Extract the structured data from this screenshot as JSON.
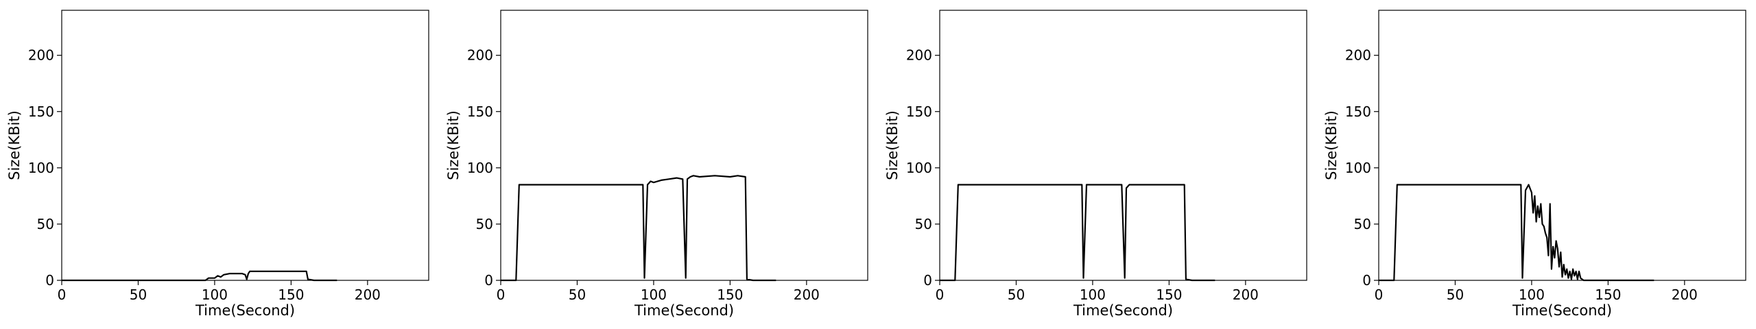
{
  "figure": {
    "background": "#ffffff",
    "line_color": "#000000"
  },
  "chart_data": [
    {
      "type": "line",
      "xlabel": "Time(Second)",
      "ylabel": "Size(KBit)",
      "xlim": [
        0,
        240
      ],
      "ylim": [
        0,
        240
      ],
      "xticks": [
        0,
        50,
        100,
        150,
        200
      ],
      "yticks": [
        0,
        50,
        100,
        150,
        200
      ],
      "grid": false,
      "series": [
        {
          "x": [
            0,
            10,
            20,
            30,
            40,
            50,
            60,
            70,
            80,
            90,
            94,
            96,
            100,
            102,
            104,
            106,
            110,
            112,
            118,
            120,
            121,
            122,
            123,
            126,
            130,
            135,
            140,
            145,
            150,
            155,
            160,
            161,
            165,
            170,
            175,
            180
          ],
          "values": [
            0,
            0,
            0,
            0,
            0,
            0,
            0,
            0,
            0,
            0,
            0,
            2,
            2,
            4,
            3,
            5,
            6,
            6,
            6,
            5,
            1,
            6,
            8,
            8,
            8,
            8,
            8,
            8,
            8,
            8,
            8,
            1,
            0,
            0,
            0,
            0
          ]
        }
      ]
    },
    {
      "type": "line",
      "xlabel": "Time(Second)",
      "ylabel": "Size(KBit)",
      "xlim": [
        0,
        240
      ],
      "ylim": [
        0,
        240
      ],
      "xticks": [
        0,
        50,
        100,
        150,
        200
      ],
      "yticks": [
        0,
        50,
        100,
        150,
        200
      ],
      "grid": false,
      "series": [
        {
          "x": [
            0,
            10,
            12,
            15,
            30,
            50,
            70,
            90,
            93,
            94,
            96,
            98,
            100,
            105,
            110,
            115,
            119,
            121,
            122,
            124,
            126,
            130,
            140,
            150,
            155,
            160,
            161,
            165,
            170,
            175,
            180
          ],
          "values": [
            0,
            0,
            85,
            85,
            85,
            85,
            85,
            85,
            85,
            2,
            85,
            88,
            87,
            89,
            90,
            91,
            90,
            2,
            90,
            92,
            93,
            92,
            93,
            92,
            93,
            92,
            1,
            0,
            0,
            0,
            0
          ]
        }
      ]
    },
    {
      "type": "line",
      "xlabel": "Time(Second)",
      "ylabel": "Size(KBit)",
      "xlim": [
        0,
        240
      ],
      "ylim": [
        0,
        240
      ],
      "xticks": [
        0,
        50,
        100,
        150,
        200
      ],
      "yticks": [
        0,
        50,
        100,
        150,
        200
      ],
      "grid": false,
      "series": [
        {
          "x": [
            0,
            10,
            12,
            15,
            30,
            50,
            70,
            90,
            93,
            94,
            96,
            100,
            110,
            119,
            121,
            122,
            124,
            130,
            140,
            150,
            155,
            160,
            161,
            165,
            170,
            175,
            180
          ],
          "values": [
            0,
            0,
            85,
            85,
            85,
            85,
            85,
            85,
            85,
            2,
            85,
            85,
            85,
            85,
            2,
            82,
            85,
            85,
            85,
            85,
            85,
            85,
            1,
            0,
            0,
            0,
            0
          ]
        }
      ]
    },
    {
      "type": "line",
      "xlabel": "Time(Second)",
      "ylabel": "Size(KBit)",
      "xlim": [
        0,
        240
      ],
      "ylim": [
        0,
        240
      ],
      "xticks": [
        0,
        50,
        100,
        150,
        200
      ],
      "yticks": [
        0,
        50,
        100,
        150,
        200
      ],
      "grid": false,
      "series": [
        {
          "x": [
            0,
            10,
            12,
            15,
            30,
            50,
            70,
            90,
            93,
            94,
            96,
            98,
            100,
            101,
            102,
            103,
            104,
            105,
            106,
            107,
            108,
            109,
            110,
            111,
            112,
            113,
            114,
            115,
            116,
            117,
            118,
            119,
            120,
            121,
            122,
            123,
            124,
            125,
            126,
            127,
            128,
            129,
            130,
            131,
            132,
            134,
            136,
            140,
            150,
            160,
            170,
            180
          ],
          "values": [
            0,
            0,
            85,
            85,
            85,
            85,
            85,
            85,
            85,
            2,
            80,
            85,
            78,
            60,
            75,
            52,
            66,
            56,
            68,
            50,
            48,
            42,
            38,
            22,
            68,
            10,
            30,
            20,
            35,
            28,
            12,
            25,
            3,
            14,
            5,
            10,
            2,
            8,
            1,
            10,
            4,
            8,
            1,
            8,
            2,
            0,
            0,
            0,
            0,
            0,
            0,
            0
          ]
        }
      ]
    }
  ]
}
